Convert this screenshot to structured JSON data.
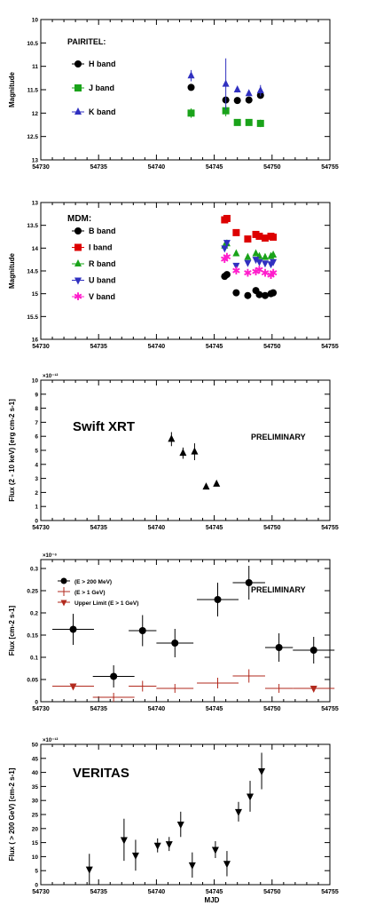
{
  "chart_data": [
    {
      "type": "scatter",
      "panel_title": "PAIRITEL:",
      "ylabel": "Magnitude",
      "xlim": [
        54730,
        54755
      ],
      "ylim": [
        13,
        10
      ],
      "y_inverted": true,
      "xticks": [
        "54730",
        "54735",
        "54740",
        "54745",
        "54750",
        "54755"
      ],
      "yticks": [
        {
          "v": 10,
          "t": "10"
        },
        {
          "v": 10.5,
          "t": "10.5"
        },
        {
          "v": 11,
          "t": "11"
        },
        {
          "v": 11.5,
          "t": "11.5"
        },
        {
          "v": 12,
          "t": "12"
        },
        {
          "v": 12.5,
          "t": "12.5"
        },
        {
          "v": 13,
          "t": "13"
        }
      ],
      "legend_placement": "top-left",
      "series": [
        {
          "name": "H band",
          "color": "#000000",
          "marker": "circle",
          "points": [
            {
              "x": 54743,
              "y": 11.45,
              "ey": 0.05
            },
            {
              "x": 54746,
              "y": 11.72,
              "ey": 0.07
            },
            {
              "x": 54747,
              "y": 11.73,
              "ey": 0.05
            },
            {
              "x": 54748,
              "y": 11.72,
              "ey": 0.05
            },
            {
              "x": 54749,
              "y": 11.62,
              "ey": 0.07
            }
          ]
        },
        {
          "name": "J band",
          "color": "#1aa31a",
          "marker": "square",
          "points": [
            {
              "x": 54743,
              "y": 12.0,
              "ey": 0.1
            },
            {
              "x": 54746,
              "y": 11.95,
              "ey": 0.12
            },
            {
              "x": 54747,
              "y": 12.2,
              "ey": 0.05
            },
            {
              "x": 54748,
              "y": 12.2,
              "ey": 0.05
            },
            {
              "x": 54749,
              "y": 12.22,
              "ey": 0.08
            }
          ]
        },
        {
          "name": "K band",
          "color": "#3030c0",
          "marker": "triangle",
          "points": [
            {
              "x": 54743,
              "y": 11.2,
              "ey": 0.12
            },
            {
              "x": 54746,
              "y": 11.38,
              "ey": 0.55
            },
            {
              "x": 54747,
              "y": 11.5,
              "ey": 0.06
            },
            {
              "x": 54748,
              "y": 11.58,
              "ey": 0.05
            },
            {
              "x": 54749,
              "y": 11.52,
              "ey": 0.12
            }
          ]
        }
      ]
    },
    {
      "type": "scatter",
      "panel_title": "MDM:",
      "ylabel": "Magnitude",
      "xlim": [
        54730,
        54755
      ],
      "ylim": [
        16,
        13
      ],
      "y_inverted": true,
      "xticks": [
        "54730",
        "54735",
        "54740",
        "54745",
        "54750",
        "54755"
      ],
      "yticks": [
        {
          "v": 13,
          "t": "13"
        },
        {
          "v": 13.5,
          "t": "13.5"
        },
        {
          "v": 14,
          "t": "14"
        },
        {
          "v": 14.5,
          "t": "14.5"
        },
        {
          "v": 15,
          "t": "15"
        },
        {
          "v": 15.5,
          "t": "15.5"
        },
        {
          "v": 16,
          "t": "16"
        }
      ],
      "legend_placement": "top-left",
      "series": [
        {
          "name": "B band",
          "color": "#000000",
          "marker": "circle",
          "points": [
            {
              "x": 54745.9,
              "y": 14.62
            },
            {
              "x": 54746.1,
              "y": 14.58
            },
            {
              "x": 54746.9,
              "y": 14.98
            },
            {
              "x": 54747.9,
              "y": 15.04
            },
            {
              "x": 54748.6,
              "y": 14.93
            },
            {
              "x": 54748.9,
              "y": 15.02
            },
            {
              "x": 54749.4,
              "y": 15.04
            },
            {
              "x": 54749.9,
              "y": 15.0
            },
            {
              "x": 54750.1,
              "y": 14.98
            }
          ]
        },
        {
          "name": "I band",
          "color": "#dd0000",
          "marker": "square",
          "points": [
            {
              "x": 54745.9,
              "y": 13.38
            },
            {
              "x": 54746.1,
              "y": 13.35
            },
            {
              "x": 54746.9,
              "y": 13.66
            },
            {
              "x": 54747.9,
              "y": 13.8
            },
            {
              "x": 54748.6,
              "y": 13.7
            },
            {
              "x": 54748.9,
              "y": 13.74
            },
            {
              "x": 54749.4,
              "y": 13.78
            },
            {
              "x": 54749.9,
              "y": 13.74
            },
            {
              "x": 54750.1,
              "y": 13.76
            }
          ]
        },
        {
          "name": "R band",
          "color": "#1aa31a",
          "marker": "triangle",
          "points": [
            {
              "x": 54745.9,
              "y": 13.95
            },
            {
              "x": 54746.1,
              "y": 13.9
            },
            {
              "x": 54746.9,
              "y": 14.12
            },
            {
              "x": 54747.9,
              "y": 14.2
            },
            {
              "x": 54748.6,
              "y": 14.12
            },
            {
              "x": 54748.9,
              "y": 14.18
            },
            {
              "x": 54749.4,
              "y": 14.2
            },
            {
              "x": 54749.9,
              "y": 14.18
            },
            {
              "x": 54750.1,
              "y": 14.15
            }
          ]
        },
        {
          "name": "U band",
          "color": "#3030c0",
          "marker": "triangle-down",
          "points": [
            {
              "x": 54745.9,
              "y": 14.0
            },
            {
              "x": 54746.1,
              "y": 13.88
            },
            {
              "x": 54746.9,
              "y": 14.38
            },
            {
              "x": 54747.9,
              "y": 14.32
            },
            {
              "x": 54748.6,
              "y": 14.25
            },
            {
              "x": 54748.9,
              "y": 14.3
            },
            {
              "x": 54749.4,
              "y": 14.33
            },
            {
              "x": 54749.9,
              "y": 14.35
            },
            {
              "x": 54750.1,
              "y": 14.3
            }
          ]
        },
        {
          "name": "V band",
          "color": "#ff1dcc",
          "marker": "star",
          "points": [
            {
              "x": 54745.9,
              "y": 14.25
            },
            {
              "x": 54746.1,
              "y": 14.2
            },
            {
              "x": 54746.9,
              "y": 14.5
            },
            {
              "x": 54747.9,
              "y": 14.55
            },
            {
              "x": 54748.6,
              "y": 14.52
            },
            {
              "x": 54748.9,
              "y": 14.48
            },
            {
              "x": 54749.4,
              "y": 14.55
            },
            {
              "x": 54749.9,
              "y": 14.6
            },
            {
              "x": 54750.1,
              "y": 14.55
            }
          ]
        }
      ]
    },
    {
      "type": "scatter",
      "panel_title": "Swift XRT",
      "annotation": "PRELIMINARY",
      "ylabel": "Flux (2 - 10 keV) [erg cm-2 s-1]",
      "multiplier": "×10⁻¹²",
      "xlim": [
        54730,
        54755
      ],
      "ylim": [
        0,
        10
      ],
      "xticks": [
        "54730",
        "54735",
        "54740",
        "54745",
        "54750",
        "54755"
      ],
      "yticks": [
        {
          "v": 0,
          "t": "0"
        },
        {
          "v": 1,
          "t": "1"
        },
        {
          "v": 2,
          "t": "2"
        },
        {
          "v": 3,
          "t": "3"
        },
        {
          "v": 4,
          "t": "4"
        },
        {
          "v": 5,
          "t": "5"
        },
        {
          "v": 6,
          "t": "6"
        },
        {
          "v": 7,
          "t": "7"
        },
        {
          "v": 8,
          "t": "8"
        },
        {
          "v": 9,
          "t": "9"
        },
        {
          "v": 10,
          "t": "10"
        }
      ],
      "series": [
        {
          "name": "",
          "color": "#000000",
          "marker": "triangle",
          "points": [
            {
              "x": 54741.3,
              "y": 5.8,
              "ey": 0.5
            },
            {
              "x": 54742.3,
              "y": 4.8,
              "ey": 0.4
            },
            {
              "x": 54743.3,
              "y": 4.9,
              "ey": 0.6
            },
            {
              "x": 54744.3,
              "y": 2.4,
              "ey": 0.1
            },
            {
              "x": 54745.2,
              "y": 2.6,
              "ey": 0.1
            }
          ]
        }
      ]
    },
    {
      "type": "scatter",
      "annotation": "PRELIMINARY",
      "ylabel": "Flux [cm-2 s-1]",
      "multiplier": "×10⁻⁶",
      "xlim": [
        54730,
        54755
      ],
      "ylim": [
        0,
        0.32
      ],
      "xticks": [
        "54730",
        "54735",
        "54740",
        "54745",
        "54750",
        "54755"
      ],
      "yticks": [
        {
          "v": 0,
          "t": "0"
        },
        {
          "v": 0.05,
          "t": "0.05"
        },
        {
          "v": 0.1,
          "t": "0.1"
        },
        {
          "v": 0.15,
          "t": "0.15"
        },
        {
          "v": 0.2,
          "t": "0.2"
        },
        {
          "v": 0.25,
          "t": "0.25"
        },
        {
          "v": 0.3,
          "t": "0.3"
        }
      ],
      "legend_placement": "top-left",
      "series": [
        {
          "name": "(E > 200 MeV)",
          "color": "#000000",
          "marker": "circle",
          "points": [
            {
              "x": 54732.8,
              "y": 0.163,
              "ex": 1.8,
              "ey": 0.035
            },
            {
              "x": 54736.3,
              "y": 0.057,
              "ex": 1.8,
              "ey": 0.025
            },
            {
              "x": 54738.8,
              "y": 0.16,
              "ex": 1.2,
              "ey": 0.035
            },
            {
              "x": 54741.6,
              "y": 0.132,
              "ex": 1.6,
              "ey": 0.032
            },
            {
              "x": 54745.3,
              "y": 0.23,
              "ex": 1.8,
              "ey": 0.038
            },
            {
              "x": 54748.0,
              "y": 0.268,
              "ex": 1.4,
              "ey": 0.038
            },
            {
              "x": 54750.6,
              "y": 0.122,
              "ex": 1.2,
              "ey": 0.032
            },
            {
              "x": 54753.6,
              "y": 0.116,
              "ex": 1.8,
              "ey": 0.03
            }
          ]
        },
        {
          "name": "(E > 1 GeV)",
          "color": "#b22a1e",
          "marker": "cross",
          "points": [
            {
              "x": 54736.3,
              "y": 0.01,
              "ex": 1.8,
              "ey": 0.01
            },
            {
              "x": 54738.8,
              "y": 0.035,
              "ex": 1.2,
              "ey": 0.012
            },
            {
              "x": 54741.6,
              "y": 0.03,
              "ex": 1.6,
              "ey": 0.01
            },
            {
              "x": 54745.3,
              "y": 0.042,
              "ex": 1.8,
              "ey": 0.012
            },
            {
              "x": 54748.0,
              "y": 0.058,
              "ex": 1.4,
              "ey": 0.015
            },
            {
              "x": 54750.6,
              "y": 0.03,
              "ex": 1.2,
              "ey": 0.01
            }
          ]
        },
        {
          "name": "Upper Limit (E > 1 GeV)",
          "color": "#b22a1e",
          "marker": "triangle-down",
          "points": [
            {
              "x": 54732.8,
              "y": 0.035,
              "ex": 1.8
            },
            {
              "x": 54753.6,
              "y": 0.03,
              "ex": 1.8
            }
          ]
        }
      ]
    },
    {
      "type": "scatter",
      "panel_title": "VERITAS",
      "ylabel": "Flux ( > 200 GeV) [cm-2 s-1]",
      "xlabel": "MJD",
      "multiplier": "×10⁻¹²",
      "xlim": [
        54730,
        54755
      ],
      "ylim": [
        0,
        50
      ],
      "xticks": [
        "54730",
        "54735",
        "54740",
        "54745",
        "54750",
        "54755"
      ],
      "yticks": [
        {
          "v": 0,
          "t": "0"
        },
        {
          "v": 5,
          "t": "5"
        },
        {
          "v": 10,
          "t": "10"
        },
        {
          "v": 15,
          "t": "15"
        },
        {
          "v": 20,
          "t": "20"
        },
        {
          "v": 25,
          "t": "25"
        },
        {
          "v": 30,
          "t": "30"
        },
        {
          "v": 35,
          "t": "35"
        },
        {
          "v": 40,
          "t": "40"
        },
        {
          "v": 45,
          "t": "45"
        },
        {
          "v": 50,
          "t": "50"
        }
      ],
      "series": [
        {
          "name": "",
          "color": "#000000",
          "marker": "triangle-down",
          "points": [
            {
              "x": 54734.2,
              "y": 5.5,
              "ey": 5.5
            },
            {
              "x": 54737.2,
              "y": 16,
              "ey": 7.5
            },
            {
              "x": 54738.2,
              "y": 10.5,
              "ey": 5.5
            },
            {
              "x": 54740.1,
              "y": 14,
              "ey": 2.5
            },
            {
              "x": 54741.1,
              "y": 14.5,
              "ey": 2.5
            },
            {
              "x": 54742.1,
              "y": 21.5,
              "ey": 4.5
            },
            {
              "x": 54743.1,
              "y": 7,
              "ey": 4.5
            },
            {
              "x": 54745.1,
              "y": 12.5,
              "ey": 3
            },
            {
              "x": 54746.1,
              "y": 7.5,
              "ey": 4.5
            },
            {
              "x": 54747.1,
              "y": 26,
              "ey": 3.5
            },
            {
              "x": 54748.1,
              "y": 31.5,
              "ey": 5.5
            },
            {
              "x": 54749.1,
              "y": 40.5,
              "ey": 6.5
            }
          ]
        }
      ]
    }
  ]
}
